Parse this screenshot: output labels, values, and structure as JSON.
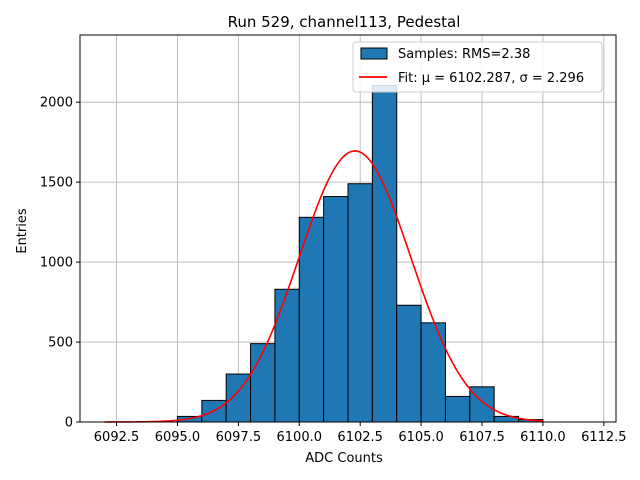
{
  "chart_data": {
    "type": "bar",
    "title": "Run 529, channel113, Pedestal",
    "xlabel": "ADC Counts",
    "ylabel": "Entries",
    "xlim": [
      6091.0,
      6113.0
    ],
    "ylim": [
      0,
      2420
    ],
    "xticks": [
      6092.5,
      6095.0,
      6097.5,
      6100.0,
      6102.5,
      6105.0,
      6107.5,
      6110.0,
      6112.5
    ],
    "xtick_labels": [
      "6092.5",
      "6095.0",
      "6097.5",
      "6100.0",
      "6102.5",
      "6105.0",
      "6107.5",
      "6110.0",
      "6112.5"
    ],
    "yticks": [
      0,
      500,
      1000,
      1500,
      2000
    ],
    "ytick_labels": [
      "0",
      "500",
      "1000",
      "1500",
      "2000"
    ],
    "grid": true,
    "legend_position": "top-right",
    "bins": {
      "left_edges": [
        6095,
        6096,
        6097,
        6098,
        6099,
        6100,
        6101,
        6102,
        6103,
        6104,
        6105,
        6106,
        6107,
        6108,
        6109
      ],
      "width": 1,
      "counts": [
        35,
        135,
        300,
        490,
        830,
        1280,
        1410,
        1490,
        2105,
        730,
        620,
        160,
        220,
        35,
        15
      ]
    },
    "series": [
      {
        "name": "Samples: RMS=2.38",
        "kind": "histogram",
        "color": "#1f77b4"
      },
      {
        "name": "Fit: μ = 6102.287, σ = 2.296",
        "kind": "gaussian-fit",
        "color": "#ff0000",
        "mu": 6102.287,
        "sigma": 2.296,
        "amplitude": 1695,
        "x_range": [
          6092,
          6110
        ]
      }
    ]
  }
}
